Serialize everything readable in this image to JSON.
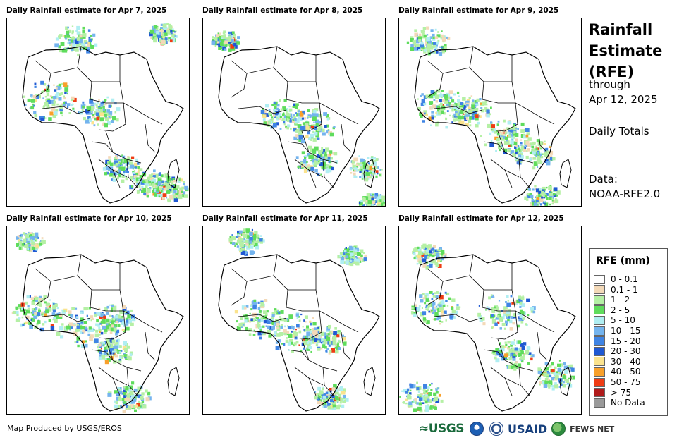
{
  "panels": [
    {
      "title": "Daily Rainfall estimate for Apr 7, 2025"
    },
    {
      "title": "Daily Rainfall estimate for Apr 8, 2025"
    },
    {
      "title": "Daily Rainfall estimate for Apr 9, 2025"
    },
    {
      "title": "Daily Rainfall estimate for Apr 10, 2025"
    },
    {
      "title": "Daily Rainfall estimate for Apr 11, 2025"
    },
    {
      "title": "Daily Rainfall estimate for Apr 12, 2025"
    }
  ],
  "side": {
    "title_line1": "Rainfall",
    "title_line2": "Estimate",
    "title_line3": "(RFE)",
    "through_label": "through",
    "through_date": "Apr 12, 2025",
    "totals": "Daily Totals",
    "data_label": "Data:",
    "data_source": "NOAA-RFE2.0"
  },
  "legend": {
    "title": "RFE (mm)",
    "items": [
      {
        "label": "0 - 0.1",
        "color": "#ffffff"
      },
      {
        "label": "0.1 - 1",
        "color": "#f3d9b8"
      },
      {
        "label": "1 - 2",
        "color": "#b5f0a5"
      },
      {
        "label": "2 - 5",
        "color": "#5fdc5c"
      },
      {
        "label": "5 - 10",
        "color": "#b0eef2"
      },
      {
        "label": "10 - 15",
        "color": "#74b4ee"
      },
      {
        "label": "15 - 20",
        "color": "#3f84e4"
      },
      {
        "label": "20 - 30",
        "color": "#1f58d2"
      },
      {
        "label": "30 - 40",
        "color": "#fbe38e"
      },
      {
        "label": "40 - 50",
        "color": "#f8a02a"
      },
      {
        "label": "50 - 75",
        "color": "#ee3c14"
      },
      {
        "label": "> 75",
        "color": "#b01b1b"
      },
      {
        "label": "No Data",
        "color": "#9a9a9a"
      }
    ]
  },
  "footer": {
    "credit": "Map Produced by USGS/EROS",
    "logo_usgs": "≈USGS",
    "logo_usaid": "USAID",
    "logo_fews": "FEWS NET"
  }
}
